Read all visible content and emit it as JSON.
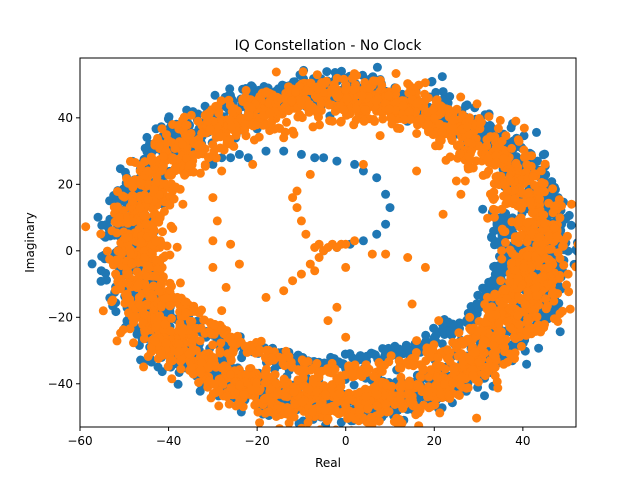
{
  "chart_data": {
    "type": "scatter",
    "title": "IQ Constellation - No Clock",
    "xlabel": "Real",
    "ylabel": "Imaginary",
    "xlim": [
      -60,
      52
    ],
    "ylim": [
      -53,
      58
    ],
    "xticks": [
      -60,
      -40,
      -20,
      0,
      20,
      40
    ],
    "yticks": [
      -40,
      -20,
      0,
      20,
      40
    ],
    "grid": false,
    "legend": "none",
    "series": [
      {
        "color": "#1f77b4",
        "ring": {
          "cx": -2,
          "cy": 1,
          "rx": 48,
          "ry": 47,
          "thickness": 6
        },
        "inner_spiral": [
          [
            -22,
            28
          ],
          [
            -18,
            30
          ],
          [
            -14,
            30
          ],
          [
            -10,
            29
          ],
          [
            -7,
            28
          ],
          [
            -5,
            28
          ],
          [
            -2,
            27
          ],
          [
            2,
            26
          ],
          [
            4,
            24
          ],
          [
            7,
            22
          ],
          [
            9,
            17
          ],
          [
            10,
            13
          ],
          [
            9,
            8
          ],
          [
            7,
            5
          ],
          [
            4,
            3
          ],
          [
            1,
            2
          ],
          [
            -2,
            1
          ],
          [
            -5,
            0
          ],
          [
            -30,
            26
          ],
          [
            -28,
            28
          ],
          [
            -26,
            28
          ],
          [
            -24,
            29
          ]
        ],
        "inner_arc": [
          [
            -45,
            -5
          ],
          [
            -44,
            -10
          ],
          [
            -42,
            -14
          ],
          [
            -39,
            -18
          ],
          [
            -35,
            -22
          ],
          [
            -31,
            -25
          ],
          [
            -27,
            -28
          ],
          [
            -22,
            -30
          ],
          [
            -17,
            -31
          ],
          [
            -12,
            -33
          ],
          [
            -7,
            -34
          ],
          [
            -2,
            -34
          ],
          [
            3,
            -33
          ],
          [
            8,
            -32
          ],
          [
            13,
            -30
          ],
          [
            18,
            -28
          ],
          [
            22,
            -25
          ],
          [
            26,
            -22
          ],
          [
            29,
            -18
          ],
          [
            32,
            -14
          ],
          [
            34,
            -10
          ],
          [
            35,
            -6
          ],
          [
            36,
            -2
          ],
          [
            36,
            2
          ],
          [
            36,
            6
          ],
          [
            35,
            10
          ]
        ]
      },
      {
        "color": "#ff7f0e",
        "ring": {
          "cx": -2,
          "cy": 0,
          "rx": 46,
          "ry": 46,
          "thickness": 7
        },
        "inner_arc": [
          [
            -44,
            5
          ],
          [
            -43,
            -2
          ],
          [
            -42,
            -8
          ],
          [
            -40,
            -13
          ],
          [
            -37,
            -17
          ],
          [
            -33,
            -21
          ],
          [
            -28,
            -25
          ],
          [
            -23,
            -28
          ],
          [
            -18,
            -31
          ],
          [
            -12,
            -34
          ],
          [
            -6,
            -36
          ],
          [
            0,
            -37
          ],
          [
            6,
            -36
          ],
          [
            12,
            -34
          ],
          [
            18,
            -32
          ],
          [
            24,
            -29
          ],
          [
            29,
            -25
          ],
          [
            33,
            -20
          ],
          [
            36,
            -15
          ],
          [
            38,
            -10
          ],
          [
            40,
            -4
          ]
        ],
        "scattered": [
          [
            -30,
            3
          ],
          [
            -27,
            -11
          ],
          [
            -28,
            -18
          ],
          [
            -18,
            -14
          ],
          [
            -14,
            -12
          ],
          [
            -12,
            -9
          ],
          [
            -10,
            -7
          ],
          [
            -8,
            -4
          ],
          [
            -7,
            -6
          ],
          [
            -6,
            -2
          ],
          [
            -5,
            0
          ],
          [
            -4,
            1
          ],
          [
            -3,
            2
          ],
          [
            -2,
            1
          ],
          [
            -1,
            2
          ],
          [
            0,
            2
          ],
          [
            2,
            3
          ],
          [
            -6,
            2
          ],
          [
            -7,
            1
          ],
          [
            -9,
            5
          ],
          [
            -10,
            9
          ],
          [
            -11,
            13
          ],
          [
            -12,
            16
          ],
          [
            -11,
            18
          ],
          [
            -8,
            23
          ],
          [
            -14,
            34
          ],
          [
            -12,
            36
          ],
          [
            -21,
            26
          ],
          [
            -28,
            24
          ],
          [
            -31,
            28
          ],
          [
            -3,
            39
          ],
          [
            -1,
            39
          ],
          [
            4,
            26
          ],
          [
            6,
            -1
          ],
          [
            9,
            -1
          ],
          [
            14,
            -2
          ],
          [
            18,
            -5
          ],
          [
            16,
            24
          ],
          [
            22,
            11
          ],
          [
            25,
            21
          ],
          [
            27,
            21
          ],
          [
            26,
            17
          ],
          [
            35,
            -9
          ],
          [
            32,
            -14
          ],
          [
            28,
            -20
          ],
          [
            21,
            -21
          ],
          [
            15,
            -16
          ],
          [
            16,
            -27
          ],
          [
            0,
            -26
          ],
          [
            -4,
            -21
          ],
          [
            -2,
            -17
          ],
          [
            0,
            -5
          ],
          [
            -30,
            -5
          ],
          [
            -24,
            -4
          ],
          [
            -26,
            2
          ],
          [
            -29,
            9
          ],
          [
            -30,
            16
          ]
        ]
      }
    ]
  }
}
